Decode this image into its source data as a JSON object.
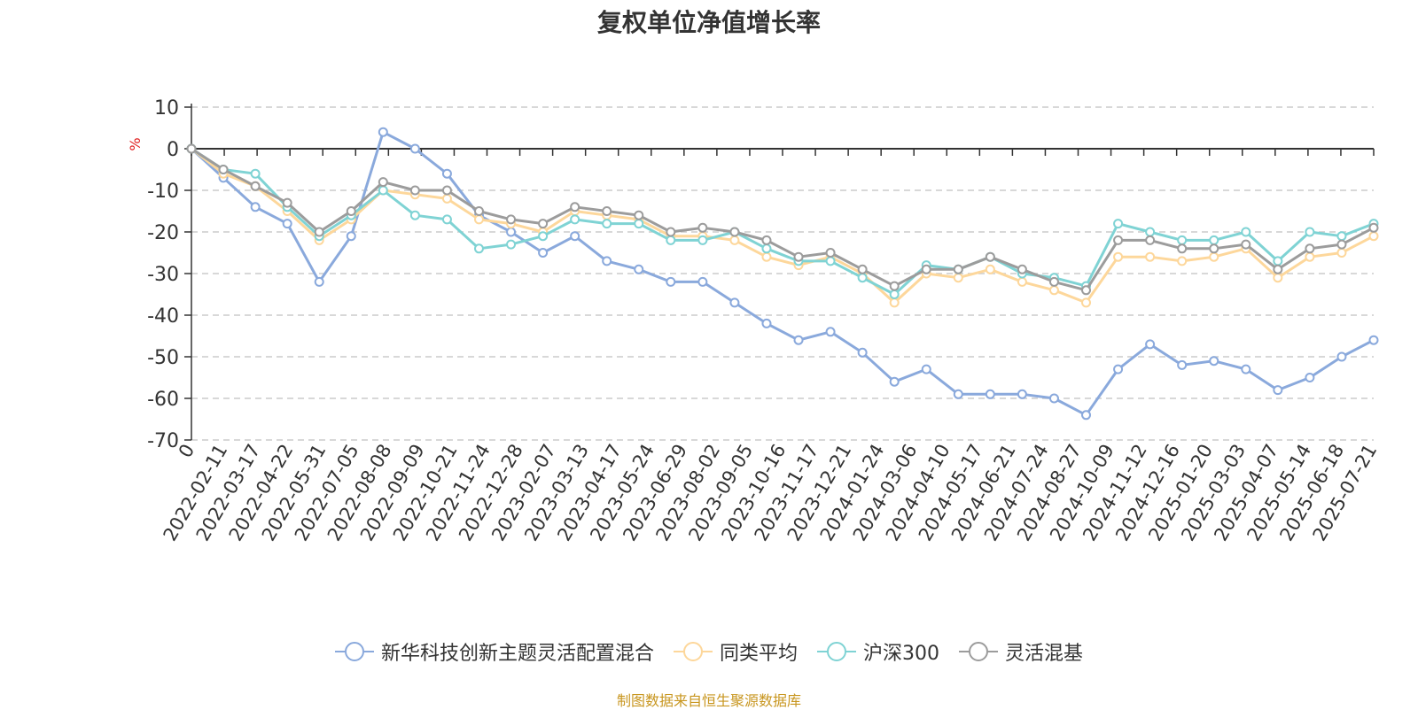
{
  "chart_data": {
    "type": "line",
    "title": "复权单位净值增长率",
    "ylabel": "%",
    "ylim": [
      -70,
      10
    ],
    "yticks": [
      10,
      0,
      -10,
      -20,
      -30,
      -40,
      -50,
      -60,
      -70
    ],
    "x_ticks": [
      "0",
      "2022-02-11",
      "2022-03-17",
      "2022-04-22",
      "2022-05-31",
      "2022-07-05",
      "2022-08-08",
      "2022-09-09",
      "2022-10-21",
      "2022-11-24",
      "2022-12-28",
      "2023-02-07",
      "2023-03-13",
      "2023-04-17",
      "2023-05-24",
      "2023-06-29",
      "2023-08-02",
      "2023-09-05",
      "2023-10-16",
      "2023-11-17",
      "2023-12-21",
      "2024-01-24",
      "2024-03-06",
      "2024-04-10",
      "2024-05-17",
      "2024-06-21",
      "2024-07-24",
      "2024-08-27",
      "2024-10-09",
      "2024-11-12",
      "2024-12-16",
      "2025-01-20",
      "2025-03-03",
      "2025-04-07",
      "2025-05-14",
      "2025-06-18",
      "2025-07-21"
    ],
    "grid": true,
    "legend_position": "bottom",
    "series": [
      {
        "name": "新华科技创新主题灵活配置混合",
        "color": "#8aa9dc",
        "values": [
          0,
          -7,
          -14,
          -18,
          -32,
          -21,
          4,
          0,
          -6,
          -16,
          -20,
          -25,
          -21,
          -27,
          -29,
          -32,
          -32,
          -37,
          -42,
          -46,
          -44,
          -49,
          -56,
          -53,
          -59,
          -59,
          -59,
          -60,
          -64,
          -53,
          -47,
          -52,
          -51,
          -53,
          -58,
          -55,
          -50,
          -46
        ]
      },
      {
        "name": "同类平均",
        "color": "#fdd79b",
        "values": [
          0,
          -6,
          -9,
          -15,
          -22,
          -17,
          -10,
          -11,
          -12,
          -17,
          -18,
          -20,
          -15,
          -16,
          -17,
          -21,
          -21,
          -22,
          -26,
          -28,
          -26,
          -30,
          -37,
          -30,
          -31,
          -29,
          -32,
          -34,
          -37,
          -26,
          -26,
          -27,
          -26,
          -24,
          -31,
          -26,
          -25,
          -21
        ]
      },
      {
        "name": "沪深300",
        "color": "#7fd3d4",
        "values": [
          0,
          -5,
          -6,
          -14,
          -21,
          -16,
          -10,
          -16,
          -17,
          -24,
          -23,
          -21,
          -17,
          -18,
          -18,
          -22,
          -22,
          -20,
          -24,
          -27,
          -27,
          -31,
          -35,
          -28,
          -29,
          -26,
          -30,
          -31,
          -33,
          -18,
          -20,
          -22,
          -22,
          -20,
          -27,
          -20,
          -21,
          -18
        ]
      },
      {
        "name": "灵活混基",
        "color": "#9c9c9c",
        "values": [
          0,
          -5,
          -9,
          -13,
          -20,
          -15,
          -8,
          -10,
          -10,
          -15,
          -17,
          -18,
          -14,
          -15,
          -16,
          -20,
          -19,
          -20,
          -22,
          -26,
          -25,
          -29,
          -33,
          -29,
          -29,
          -26,
          -29,
          -32,
          -34,
          -22,
          -22,
          -24,
          -24,
          -23,
          -29,
          -24,
          -23,
          -19
        ]
      }
    ]
  },
  "footer": {
    "source": "制图数据来自恒生聚源数据库"
  }
}
